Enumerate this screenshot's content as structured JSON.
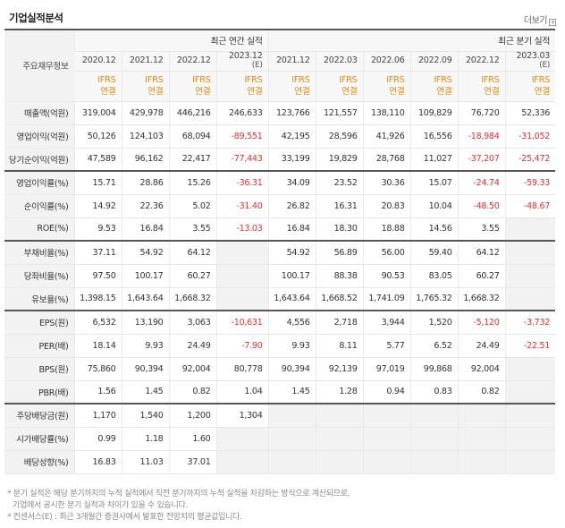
{
  "header": {
    "title": "기업실적분석",
    "more_label": "더보기",
    "more_icon": "plus-box-icon"
  },
  "table": {
    "label_header": "주요재무정보",
    "annual_group": "최근 연간 실적",
    "quarter_group": "최근 분기 실적",
    "periods": [
      {
        "date": "2020.12",
        "est": ""
      },
      {
        "date": "2021.12",
        "est": ""
      },
      {
        "date": "2022.12",
        "est": ""
      },
      {
        "date": "2023.12",
        "est": "(E)"
      },
      {
        "date": "2021.12",
        "est": ""
      },
      {
        "date": "2022.03",
        "est": ""
      },
      {
        "date": "2022.06",
        "est": ""
      },
      {
        "date": "2022.09",
        "est": ""
      },
      {
        "date": "2022.12",
        "est": ""
      },
      {
        "date": "2023.03",
        "est": "(E)"
      }
    ],
    "ifrs": {
      "line1": "IFRS",
      "line2": "연결"
    },
    "rows": [
      {
        "label": "매출액(억원)",
        "values": [
          "319,004",
          "429,978",
          "446,216",
          "246,633",
          "123,766",
          "121,557",
          "138,110",
          "109,829",
          "76,720",
          "52,336"
        ]
      },
      {
        "label": "영업이익(억원)",
        "values": [
          "50,126",
          "124,103",
          "68,094",
          "-89,551",
          "42,195",
          "28,596",
          "41,926",
          "16,556",
          "-18,984",
          "-31,052"
        ]
      },
      {
        "label": "당기순이익(억원)",
        "values": [
          "47,589",
          "96,162",
          "22,417",
          "-77,443",
          "33,199",
          "19,829",
          "28,768",
          "11,027",
          "-37,207",
          "-25,472"
        ]
      },
      {
        "label": "영업이익률(%)",
        "values": [
          "15.71",
          "28.86",
          "15.26",
          "-36.31",
          "34.09",
          "23.52",
          "30.36",
          "15.07",
          "-24.74",
          "-59.33"
        ]
      },
      {
        "label": "순이익률(%)",
        "values": [
          "14.92",
          "22.36",
          "5.02",
          "-31.40",
          "26.82",
          "16.31",
          "20.83",
          "10.04",
          "-48.50",
          "-48.67"
        ]
      },
      {
        "label": "ROE(%)",
        "values": [
          "9.53",
          "16.84",
          "3.55",
          "-13.03",
          "16.84",
          "18.30",
          "18.88",
          "14.56",
          "3.55",
          ""
        ]
      },
      {
        "label": "부채비율(%)",
        "values": [
          "37.11",
          "54.92",
          "64.12",
          "",
          "54.92",
          "56.89",
          "56.00",
          "59.40",
          "64.12",
          ""
        ]
      },
      {
        "label": "당좌비율(%)",
        "values": [
          "97.50",
          "100.17",
          "60.27",
          "",
          "100.17",
          "88.38",
          "90.53",
          "83.05",
          "60.27",
          ""
        ]
      },
      {
        "label": "유보율(%)",
        "values": [
          "1,398.15",
          "1,643.64",
          "1,668.32",
          "",
          "1,643.64",
          "1,668.52",
          "1,741.09",
          "1,765.32",
          "1,668.32",
          ""
        ]
      },
      {
        "label": "EPS(원)",
        "values": [
          "6,532",
          "13,190",
          "3,063",
          "-10,631",
          "4,556",
          "2,718",
          "3,944",
          "1,520",
          "-5,120",
          "-3,732"
        ]
      },
      {
        "label": "PER(배)",
        "values": [
          "18.14",
          "9.93",
          "24.49",
          "-7.90",
          "9.93",
          "8.11",
          "5.77",
          "6.52",
          "24.49",
          "-22.51"
        ]
      },
      {
        "label": "BPS(원)",
        "values": [
          "75,860",
          "90,394",
          "92,004",
          "80,778",
          "90,394",
          "92,139",
          "97,019",
          "99,868",
          "92,004",
          ""
        ]
      },
      {
        "label": "PBR(배)",
        "values": [
          "1.56",
          "1.45",
          "0.82",
          "1.04",
          "1.45",
          "1.28",
          "0.94",
          "0.83",
          "0.82",
          ""
        ]
      },
      {
        "label": "주당배당금(원)",
        "values": [
          "1,170",
          "1,540",
          "1,200",
          "1,304",
          "",
          "",
          "",
          "",
          "",
          ""
        ]
      },
      {
        "label": "시가배당률(%)",
        "values": [
          "0.99",
          "1.18",
          "1.60",
          "",
          "",
          "",
          "",
          "",
          "",
          ""
        ]
      },
      {
        "label": "배당성향(%)",
        "values": [
          "16.83",
          "11.03",
          "37.01",
          "",
          "",
          "",
          "",
          "",
          "",
          ""
        ]
      }
    ]
  },
  "notes": [
    "* 분기 실적은 해당 분기까지의 누적 실적에서 직전 분기까지의 누적 실적을 차감하는 방식으로 계산되므로,",
    "  기업에서 공시한 분기 실적과 차이가 있을 수 있습니다.",
    "* 컨센서스(E) : 최근 3개월간 증권사에서 발표한 전망치의 평균값입니다."
  ]
}
